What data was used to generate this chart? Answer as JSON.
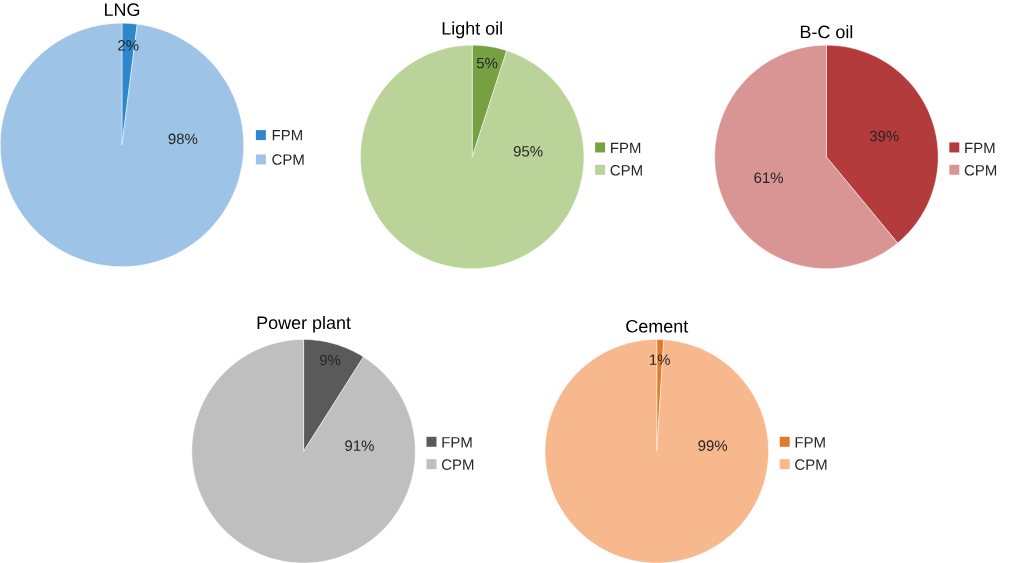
{
  "chart_data": [
    {
      "type": "pie",
      "title": "LNG",
      "categories": [
        "FPM",
        "CPM"
      ],
      "values": [
        2,
        98
      ],
      "value_labels": [
        "2%",
        "98%"
      ],
      "colors": [
        "#2e86cc",
        "#9dc3e6"
      ],
      "legend": "right"
    },
    {
      "type": "pie",
      "title": "Light oil",
      "categories": [
        "FPM",
        "CPM"
      ],
      "values": [
        5,
        95
      ],
      "value_labels": [
        "5%",
        "95%"
      ],
      "colors": [
        "#77a042",
        "#b9d399"
      ],
      "legend": "right"
    },
    {
      "type": "pie",
      "title": "B-C oil",
      "categories": [
        "FPM",
        "CPM"
      ],
      "values": [
        39,
        61
      ],
      "value_labels": [
        "39%",
        "61%"
      ],
      "colors": [
        "#b33b3b",
        "#d99594"
      ],
      "legend": "right"
    },
    {
      "type": "pie",
      "title": "Power plant",
      "categories": [
        "FPM",
        "CPM"
      ],
      "values": [
        9,
        91
      ],
      "value_labels": [
        "9%",
        "91%"
      ],
      "colors": [
        "#5a5a5a",
        "#bfbfbf"
      ],
      "legend": "right"
    },
    {
      "type": "pie",
      "title": "Cement",
      "categories": [
        "FPM",
        "CPM"
      ],
      "values": [
        1,
        99
      ],
      "value_labels": [
        "1%",
        "99%"
      ],
      "colors": [
        "#e07b2a",
        "#f8b88e"
      ],
      "legend": "right"
    }
  ]
}
